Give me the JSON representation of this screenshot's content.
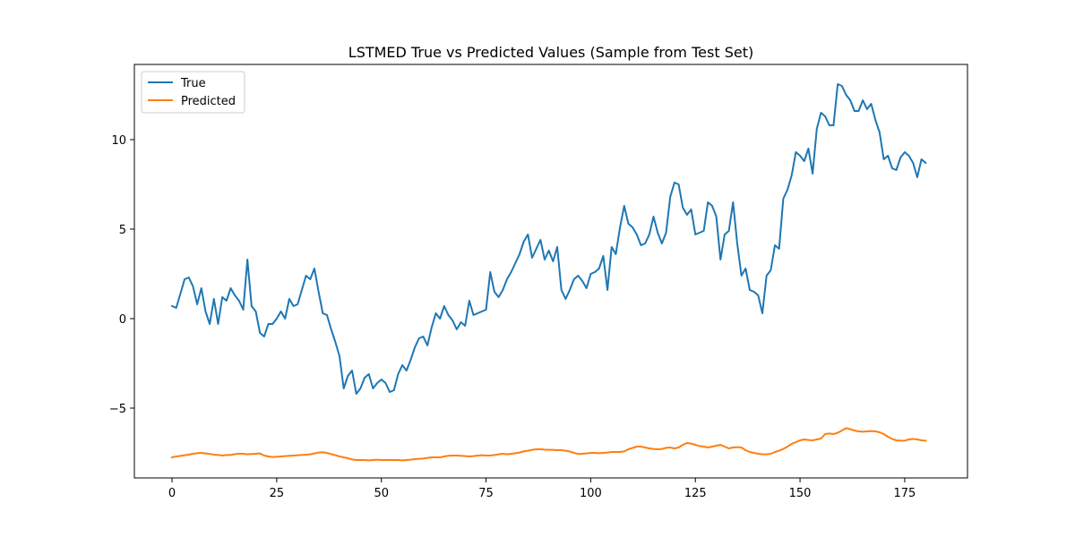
{
  "chart_data": {
    "type": "line",
    "title": "LSTMED True vs Predicted Values (Sample from Test Set)",
    "xlabel": "",
    "ylabel": "",
    "xlim": [
      -9,
      190
    ],
    "ylim": [
      -8.9,
      14.2
    ],
    "x_ticks": [
      0,
      25,
      50,
      75,
      100,
      125,
      150,
      175
    ],
    "y_ticks": [
      -5,
      0,
      5,
      10
    ],
    "y_tick_labels": [
      "−5",
      "0",
      "5",
      "10"
    ],
    "grid": false,
    "legend_position": "top-left",
    "series": [
      {
        "name": "True",
        "color": "#1f77b4",
        "values": [
          0.7,
          0.6,
          1.4,
          2.2,
          2.3,
          1.8,
          0.8,
          1.7,
          0.4,
          -0.3,
          1.1,
          -0.3,
          1.2,
          1.0,
          1.7,
          1.3,
          1.0,
          0.5,
          3.3,
          0.7,
          0.4,
          -0.8,
          -1.0,
          -0.3,
          -0.3,
          0.0,
          0.4,
          0.0,
          1.1,
          0.7,
          0.8,
          1.6,
          2.4,
          2.2,
          2.8,
          1.5,
          0.3,
          0.2,
          -0.6,
          -1.3,
          -2.1,
          -3.9,
          -3.2,
          -2.9,
          -4.2,
          -3.9,
          -3.3,
          -3.1,
          -3.9,
          -3.6,
          -3.4,
          -3.6,
          -4.1,
          -4.0,
          -3.1,
          -2.6,
          -2.9,
          -2.3,
          -1.6,
          -1.1,
          -1.0,
          -1.5,
          -0.5,
          0.3,
          0.0,
          0.7,
          0.2,
          -0.1,
          -0.6,
          -0.2,
          -0.4,
          1.0,
          0.2,
          0.3,
          0.4,
          0.5,
          2.6,
          1.5,
          1.2,
          1.6,
          2.2,
          2.6,
          3.1,
          3.6,
          4.3,
          4.7,
          3.4,
          3.9,
          4.4,
          3.3,
          3.8,
          3.2,
          4.0,
          1.6,
          1.1,
          1.6,
          2.2,
          2.4,
          2.1,
          1.7,
          2.5,
          2.6,
          2.8,
          3.5,
          1.6,
          4.0,
          3.6,
          5.1,
          6.3,
          5.3,
          5.1,
          4.7,
          4.1,
          4.2,
          4.7,
          5.7,
          4.8,
          4.2,
          4.8,
          6.8,
          7.6,
          7.5,
          6.2,
          5.8,
          6.1,
          4.7,
          4.8,
          4.9,
          6.5,
          6.3,
          5.7,
          3.3,
          4.7,
          4.9,
          6.5,
          4.2,
          2.4,
          2.8,
          1.6,
          1.5,
          1.3,
          0.3,
          2.4,
          2.7,
          4.1,
          3.9,
          6.7,
          7.2,
          8.0,
          9.3,
          9.1,
          8.8,
          9.5,
          8.1,
          10.6,
          11.5,
          11.3,
          10.8,
          10.8,
          13.1,
          13.0,
          12.5,
          12.2,
          11.6,
          11.6,
          12.2,
          11.7,
          12.0,
          11.1,
          10.4,
          8.9,
          9.1,
          8.4,
          8.3,
          9.0,
          9.3,
          9.1,
          8.7,
          7.9,
          8.9,
          8.7
        ]
      },
      {
        "name": "Predicted",
        "color": "#ff7f0e",
        "values": [
          -7.75,
          -7.7,
          -7.67,
          -7.63,
          -7.6,
          -7.55,
          -7.52,
          -7.5,
          -7.53,
          -7.56,
          -7.6,
          -7.62,
          -7.65,
          -7.62,
          -7.62,
          -7.57,
          -7.55,
          -7.55,
          -7.58,
          -7.56,
          -7.55,
          -7.53,
          -7.65,
          -7.7,
          -7.73,
          -7.72,
          -7.7,
          -7.68,
          -7.66,
          -7.65,
          -7.63,
          -7.62,
          -7.6,
          -7.58,
          -7.53,
          -7.48,
          -7.47,
          -7.5,
          -7.57,
          -7.63,
          -7.7,
          -7.75,
          -7.8,
          -7.87,
          -7.9,
          -7.9,
          -7.9,
          -7.92,
          -7.9,
          -7.88,
          -7.9,
          -7.9,
          -7.9,
          -7.9,
          -7.9,
          -7.92,
          -7.9,
          -7.88,
          -7.85,
          -7.83,
          -7.82,
          -7.78,
          -7.75,
          -7.75,
          -7.75,
          -7.7,
          -7.66,
          -7.65,
          -7.65,
          -7.66,
          -7.68,
          -7.7,
          -7.68,
          -7.65,
          -7.63,
          -7.65,
          -7.65,
          -7.62,
          -7.58,
          -7.55,
          -7.58,
          -7.55,
          -7.52,
          -7.48,
          -7.42,
          -7.38,
          -7.33,
          -7.3,
          -7.3,
          -7.32,
          -7.33,
          -7.33,
          -7.35,
          -7.35,
          -7.38,
          -7.42,
          -7.5,
          -7.56,
          -7.55,
          -7.53,
          -7.5,
          -7.5,
          -7.52,
          -7.5,
          -7.48,
          -7.45,
          -7.45,
          -7.45,
          -7.42,
          -7.3,
          -7.22,
          -7.15,
          -7.15,
          -7.2,
          -7.25,
          -7.28,
          -7.3,
          -7.28,
          -7.22,
          -7.2,
          -7.25,
          -7.2,
          -7.05,
          -6.95,
          -6.98,
          -7.05,
          -7.12,
          -7.15,
          -7.2,
          -7.15,
          -7.1,
          -7.05,
          -7.15,
          -7.25,
          -7.2,
          -7.18,
          -7.2,
          -7.35,
          -7.45,
          -7.5,
          -7.55,
          -7.58,
          -7.58,
          -7.55,
          -7.45,
          -7.38,
          -7.28,
          -7.15,
          -7.0,
          -6.9,
          -6.8,
          -6.75,
          -6.78,
          -6.8,
          -6.75,
          -6.7,
          -6.45,
          -6.42,
          -6.45,
          -6.38,
          -6.25,
          -6.12,
          -6.18,
          -6.25,
          -6.3,
          -6.32,
          -6.3,
          -6.28,
          -6.3,
          -6.35,
          -6.45,
          -6.6,
          -6.72,
          -6.8,
          -6.82,
          -6.82,
          -6.75,
          -6.72,
          -6.75,
          -6.8,
          -6.82
        ]
      }
    ]
  }
}
